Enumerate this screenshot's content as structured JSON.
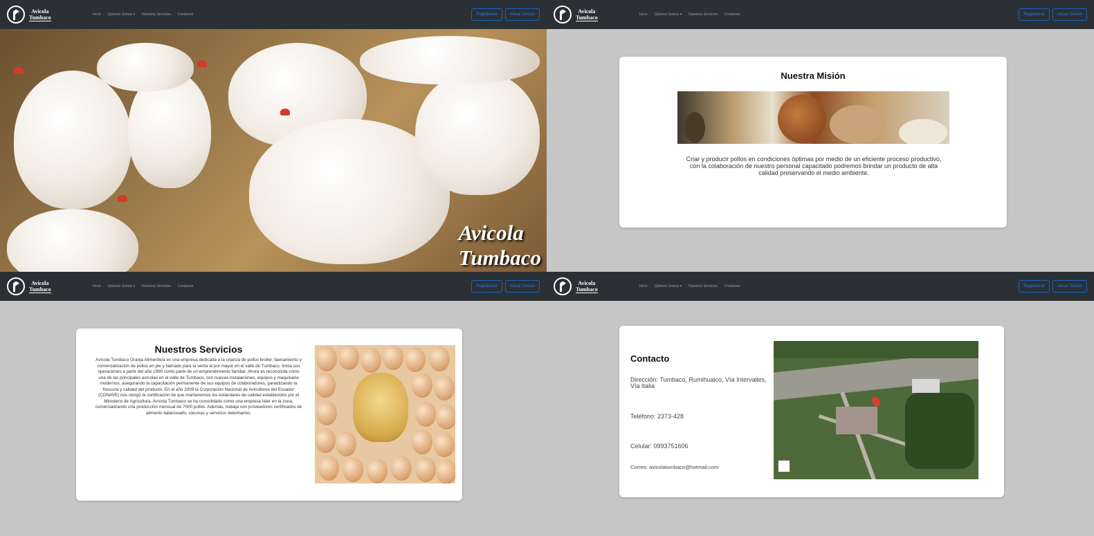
{
  "navbar": {
    "logo_line1": "Avicola",
    "logo_line2": "Tumbaco",
    "links": [
      "Inicio",
      "Quiénes Somos ▾",
      "Nuestros Servicios",
      "Contactos"
    ],
    "register_label": "Registrarse",
    "login_label": "Iniciar Sesion"
  },
  "hero": {
    "title_line1": "Avicola",
    "title_line2": "Tumbaco"
  },
  "mission": {
    "title": "Nuestra Misión",
    "text": "Criar y producir pollos en condiciones óptimas por medio de un eficiente proceso productivo, con la colaboración de nuestro personal capacitado podremos brindar un producto de alta calidad preservando el medio ambiente."
  },
  "services": {
    "title": "Nuestros Servicios",
    "text": "Avícola Tumbaco Granja Alimenticia es una empresa dedicada a la crianza de pollos broiler, faenamiento y comercialización de pollos en pie y faenado para la venta al por mayor en el valle de Tumbaco. Inicia sus operaciones a partir del año 1990 como parte de un emprendimiento familiar. Ahora es reconocida como una de las principales avícolas en el valle de Tumbaco, con nuevas instalaciones, equipos y maquinaria modernos, asegurando la capacitación permanente de sus equipos de colaboradores, garantizando la frescura y calidad del producto. En el año 2009 la Corporación Nacional de Avicultores del Ecuador (CONAVE) nos otorgó la certificación de que mantenemos los estándares de calidad establecidos por el Ministerio de Agricultura. Avícola Tumbaco se ha consolidado como una empresa líder en la zona, comercializando una producción mensual de 7000 pollos. Además, trabaja con proveedores certificados de alimento balanceado, vacunas y servicios veterinarios."
  },
  "contact": {
    "title": "Contacto",
    "address": "Dirección: Tumbaco, Rumihuaico, Vía Intervalles, Vía Italia",
    "phone": "Teléfono: 2373-428",
    "mobile": "Celular: 0993751606",
    "email": "Correo: avicolatumbaco@hotmail.com"
  },
  "colors": {
    "navbar_bg": "#2b3035",
    "page_bg": "#c6c6c6",
    "button_accent": "#2e7be0"
  },
  "icons": [
    "logo-mark-icon",
    "map-pin-icon"
  ]
}
